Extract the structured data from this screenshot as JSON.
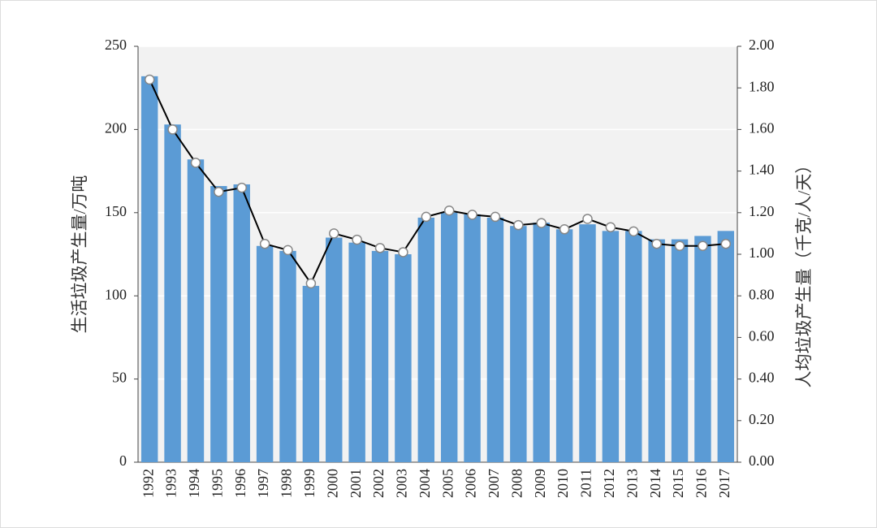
{
  "chart_data": {
    "type": "bar",
    "ylabel": "生活垃圾产生量/万吨",
    "y2label": "人均垃圾产生量（千克/人/天）",
    "categories": [
      "1992",
      "1993",
      "1994",
      "1995",
      "1996",
      "1997",
      "1998",
      "1999",
      "2000",
      "2001",
      "2002",
      "2003",
      "2004",
      "2005",
      "2006",
      "2007",
      "2008",
      "2009",
      "2010",
      "2011",
      "2012",
      "2013",
      "2014",
      "2015",
      "2016",
      "2017"
    ],
    "series": [
      {
        "type": "bar",
        "color": "#5b9bd5",
        "values": [
          232,
          203,
          182,
          166,
          167,
          130,
          127,
          106,
          135,
          132,
          127,
          125,
          147,
          150,
          149,
          147,
          142,
          144,
          140,
          143,
          139,
          139,
          134,
          134,
          136,
          139
        ]
      },
      {
        "type": "line",
        "axis": "y2",
        "color": "#000000",
        "values": [
          1.84,
          1.6,
          1.44,
          1.3,
          1.32,
          1.05,
          1.02,
          0.86,
          1.1,
          1.07,
          1.03,
          1.01,
          1.18,
          1.21,
          1.19,
          1.18,
          1.14,
          1.15,
          1.12,
          1.17,
          1.13,
          1.11,
          1.05,
          1.04,
          1.04,
          1.05
        ]
      }
    ],
    "ylim": [
      0,
      250
    ],
    "yticks": [
      0,
      50,
      100,
      150,
      200,
      250
    ],
    "y2lim": [
      0,
      2
    ],
    "y2ticks": [
      {
        "value": 0,
        "label": "0.00"
      },
      {
        "value": 0.2,
        "label": "0.20"
      },
      {
        "value": 0.4,
        "label": "0.40"
      },
      {
        "value": 0.6,
        "label": "0.60"
      },
      {
        "value": 0.8,
        "label": "0.80"
      },
      {
        "value": 1,
        "label": "1.00"
      },
      {
        "value": 1.2,
        "label": "1.20"
      },
      {
        "value": 1.4,
        "label": "1.40"
      },
      {
        "value": 1.6,
        "label": "1.60"
      },
      {
        "value": 1.8,
        "label": "1.80"
      },
      {
        "value": 2,
        "label": "2.00"
      }
    ],
    "grid": true
  }
}
